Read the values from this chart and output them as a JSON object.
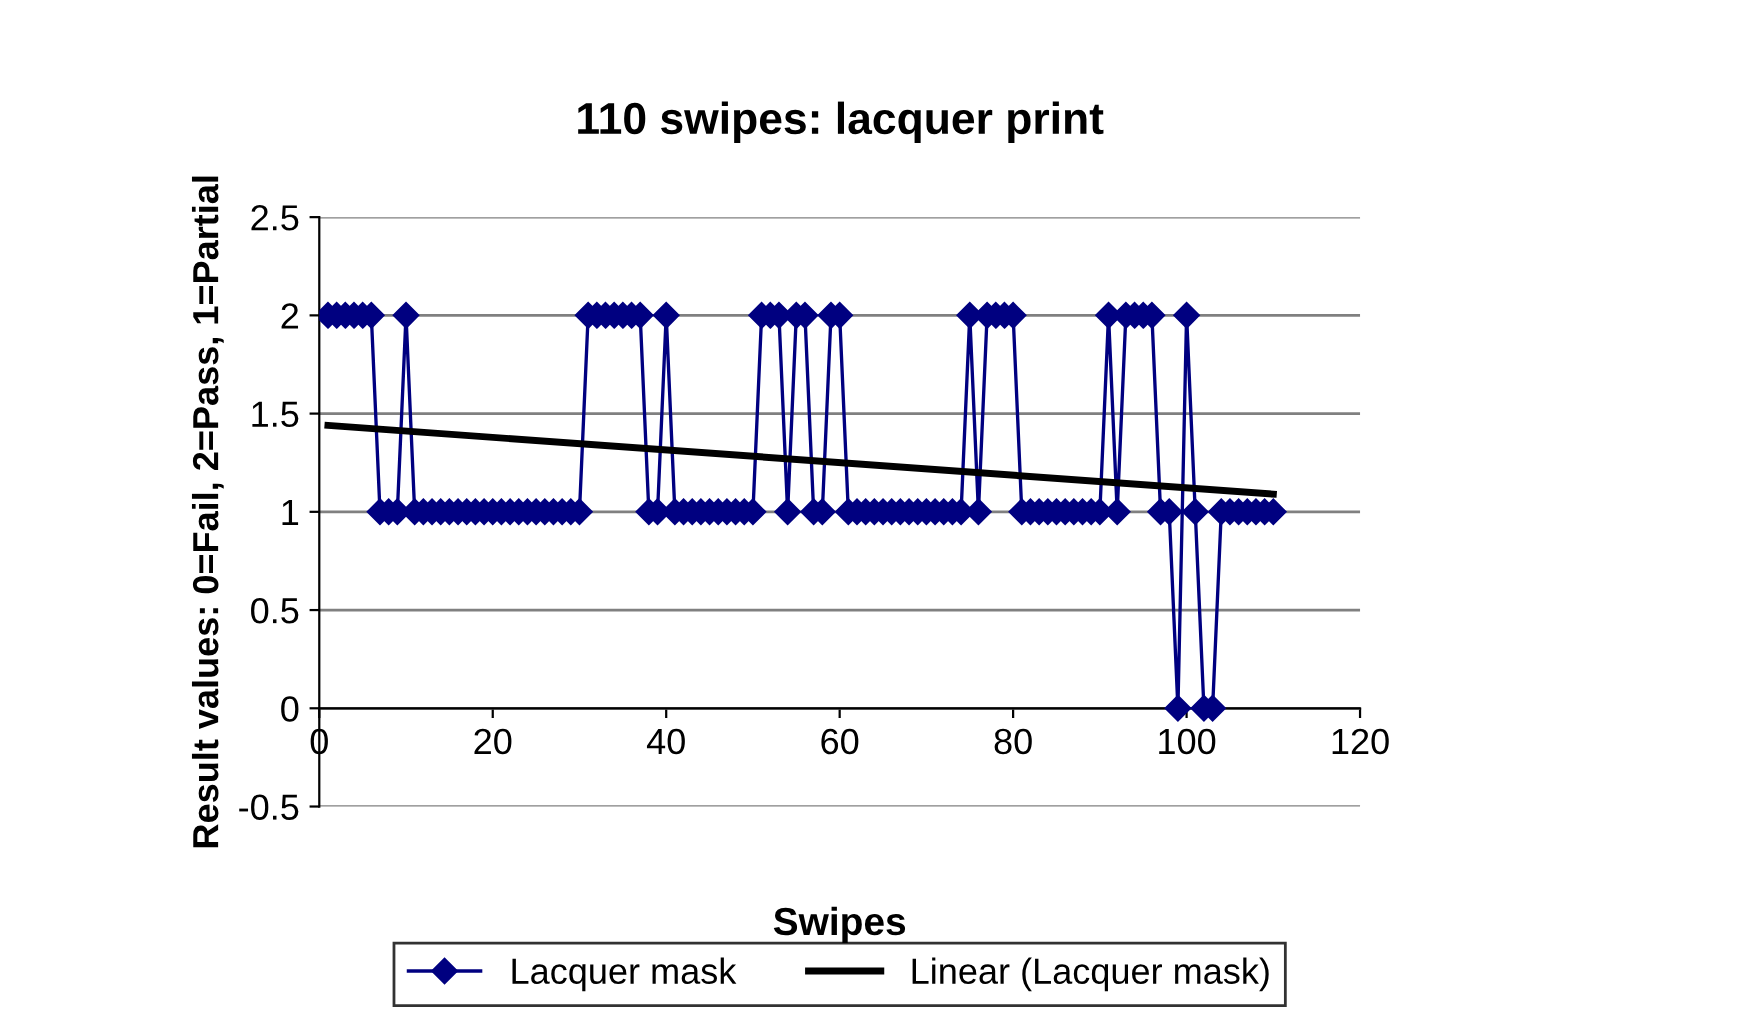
{
  "chart_data": {
    "type": "line",
    "title": "110 swipes: lacquer print",
    "xlabel": "Swipes",
    "ylabel": "Result values: 0=Fail, 2=Pass, 1=Partial",
    "xlim": [
      0,
      120
    ],
    "xticks": [
      0,
      20,
      40,
      60,
      80,
      100,
      120
    ],
    "ylim": [
      -0.5,
      2.5
    ],
    "yticks": [
      -0.5,
      0,
      0.5,
      1,
      1.5,
      2,
      2.5
    ],
    "grid": "y",
    "legend": "bottom",
    "series": [
      {
        "name": "Lacquer mask",
        "color": "#000080",
        "marker": "diamond",
        "line_style": "solid",
        "x": [
          1,
          2,
          3,
          4,
          5,
          6,
          7,
          8,
          9,
          10,
          11,
          12,
          13,
          14,
          15,
          16,
          17,
          18,
          19,
          20,
          21,
          22,
          23,
          24,
          25,
          26,
          27,
          28,
          29,
          30,
          31,
          32,
          33,
          34,
          35,
          36,
          37,
          38,
          39,
          40,
          41,
          42,
          43,
          44,
          45,
          46,
          47,
          48,
          49,
          50,
          51,
          52,
          53,
          54,
          55,
          56,
          57,
          58,
          59,
          60,
          61,
          62,
          63,
          64,
          65,
          66,
          67,
          68,
          69,
          70,
          71,
          72,
          73,
          74,
          75,
          76,
          77,
          78,
          79,
          80,
          81,
          82,
          83,
          84,
          85,
          86,
          87,
          88,
          89,
          90,
          91,
          92,
          93,
          94,
          95,
          96,
          97,
          98,
          99,
          100,
          101,
          102,
          103,
          104,
          105,
          106,
          107,
          108,
          109,
          110
        ],
        "values": [
          2,
          2,
          2,
          2,
          2,
          2,
          1,
          1,
          1,
          2,
          1,
          1,
          1,
          1,
          1,
          1,
          1,
          1,
          1,
          1,
          1,
          1,
          1,
          1,
          1,
          1,
          1,
          1,
          1,
          1,
          2,
          2,
          2,
          2,
          2,
          2,
          2,
          1,
          1,
          2,
          1,
          1,
          1,
          1,
          1,
          1,
          1,
          1,
          1,
          1,
          2,
          2,
          2,
          1,
          2,
          2,
          1,
          1,
          2,
          2,
          1,
          1,
          1,
          1,
          1,
          1,
          1,
          1,
          1,
          1,
          1,
          1,
          1,
          1,
          2,
          1,
          2,
          2,
          2,
          2,
          1,
          1,
          1,
          1,
          1,
          1,
          1,
          1,
          1,
          1,
          2,
          1,
          2,
          2,
          2,
          2,
          1,
          1,
          0,
          2,
          1,
          0,
          0,
          1,
          1,
          1,
          1,
          1,
          1,
          1
        ]
      },
      {
        "name": "Linear (Lacquer mask)",
        "color": "#000000",
        "marker": "none",
        "line_style": "solid",
        "x": [
          1,
          110
        ],
        "values": [
          1.44,
          1.09
        ]
      }
    ]
  }
}
